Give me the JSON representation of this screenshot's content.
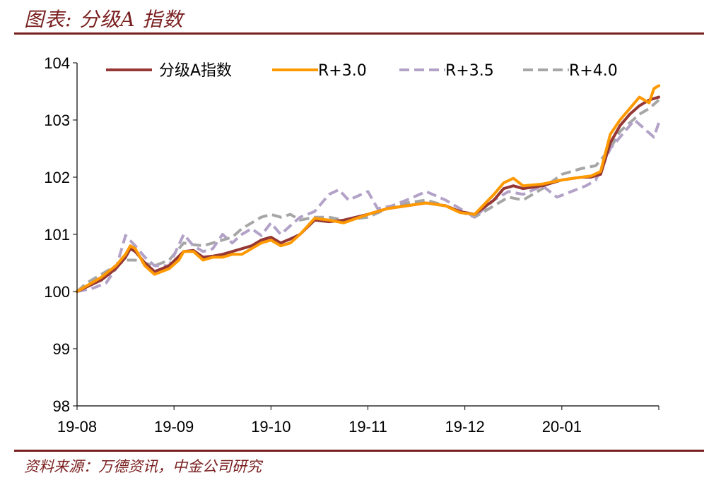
{
  "header": {
    "title": "图表: 分级A 指数"
  },
  "footer": {
    "source": "资料来源：万德资讯，中金公司研究"
  },
  "colors": {
    "accent": "#7a1f1f"
  },
  "chart_data": {
    "type": "line",
    "title": "",
    "xlabel": "",
    "ylabel": "",
    "ylim": [
      98,
      104
    ],
    "yticks": [
      98,
      99,
      100,
      101,
      102,
      103,
      104
    ],
    "xticks": [
      "19-08",
      "19-09",
      "19-10",
      "19-11",
      "19-12",
      "20-01"
    ],
    "xlim_months": [
      0,
      6
    ],
    "grid": false,
    "legend_position": "top",
    "series": [
      {
        "name": "分级A指数",
        "color": "#953735",
        "dash": "solid",
        "points": [
          [
            0,
            100.0
          ],
          [
            0.1,
            100.08
          ],
          [
            0.25,
            100.2
          ],
          [
            0.4,
            100.4
          ],
          [
            0.5,
            100.6
          ],
          [
            0.55,
            100.75
          ],
          [
            0.6,
            100.7
          ],
          [
            0.7,
            100.5
          ],
          [
            0.8,
            100.35
          ],
          [
            0.95,
            100.45
          ],
          [
            1.1,
            100.7
          ],
          [
            1.2,
            100.72
          ],
          [
            1.3,
            100.6
          ],
          [
            1.4,
            100.62
          ],
          [
            1.5,
            100.65
          ],
          [
            1.6,
            100.7
          ],
          [
            1.7,
            100.75
          ],
          [
            1.8,
            100.8
          ],
          [
            1.9,
            100.9
          ],
          [
            2.0,
            100.95
          ],
          [
            2.1,
            100.85
          ],
          [
            2.2,
            100.92
          ],
          [
            2.3,
            101.0
          ],
          [
            2.45,
            101.25
          ],
          [
            2.6,
            101.22
          ],
          [
            2.75,
            101.25
          ],
          [
            3.0,
            101.35
          ],
          [
            3.2,
            101.45
          ],
          [
            3.4,
            101.5
          ],
          [
            3.6,
            101.55
          ],
          [
            3.8,
            101.5
          ],
          [
            3.95,
            101.4
          ],
          [
            4.1,
            101.35
          ],
          [
            4.3,
            101.6
          ],
          [
            4.4,
            101.8
          ],
          [
            4.5,
            101.85
          ],
          [
            4.6,
            101.8
          ],
          [
            4.8,
            101.85
          ],
          [
            5.0,
            101.95
          ],
          [
            5.2,
            102.0
          ],
          [
            5.3,
            102.0
          ],
          [
            5.4,
            102.05
          ],
          [
            5.5,
            102.6
          ],
          [
            5.6,
            102.9
          ],
          [
            5.7,
            103.1
          ],
          [
            5.8,
            103.25
          ],
          [
            5.9,
            103.35
          ],
          [
            6.0,
            103.4
          ]
        ]
      },
      {
        "name": "R+3.0",
        "color": "#ff9900",
        "dash": "solid",
        "points": [
          [
            0,
            100.0
          ],
          [
            0.1,
            100.1
          ],
          [
            0.25,
            100.25
          ],
          [
            0.4,
            100.45
          ],
          [
            0.5,
            100.65
          ],
          [
            0.55,
            100.8
          ],
          [
            0.6,
            100.75
          ],
          [
            0.7,
            100.45
          ],
          [
            0.8,
            100.3
          ],
          [
            0.95,
            100.4
          ],
          [
            1.05,
            100.55
          ],
          [
            1.1,
            100.7
          ],
          [
            1.2,
            100.7
          ],
          [
            1.3,
            100.55
          ],
          [
            1.4,
            100.6
          ],
          [
            1.5,
            100.6
          ],
          [
            1.6,
            100.65
          ],
          [
            1.7,
            100.65
          ],
          [
            1.8,
            100.75
          ],
          [
            1.9,
            100.85
          ],
          [
            2.0,
            100.9
          ],
          [
            2.1,
            100.8
          ],
          [
            2.2,
            100.85
          ],
          [
            2.3,
            101.0
          ],
          [
            2.45,
            101.28
          ],
          [
            2.6,
            101.25
          ],
          [
            2.75,
            101.2
          ],
          [
            3.0,
            101.35
          ],
          [
            3.2,
            101.45
          ],
          [
            3.4,
            101.5
          ],
          [
            3.6,
            101.55
          ],
          [
            3.8,
            101.5
          ],
          [
            3.95,
            101.38
          ],
          [
            4.1,
            101.35
          ],
          [
            4.3,
            101.7
          ],
          [
            4.4,
            101.9
          ],
          [
            4.5,
            101.98
          ],
          [
            4.6,
            101.85
          ],
          [
            4.8,
            101.88
          ],
          [
            5.0,
            101.95
          ],
          [
            5.2,
            102.0
          ],
          [
            5.3,
            102.02
          ],
          [
            5.4,
            102.1
          ],
          [
            5.5,
            102.75
          ],
          [
            5.6,
            103.0
          ],
          [
            5.7,
            103.2
          ],
          [
            5.8,
            103.4
          ],
          [
            5.9,
            103.3
          ],
          [
            5.95,
            103.55
          ],
          [
            6.0,
            103.6
          ]
        ]
      },
      {
        "name": "R+3.5",
        "color": "#b3a2c7",
        "dash": "dashed",
        "points": [
          [
            0,
            100.0
          ],
          [
            0.15,
            100.05
          ],
          [
            0.3,
            100.15
          ],
          [
            0.4,
            100.4
          ],
          [
            0.5,
            100.98
          ],
          [
            0.6,
            100.8
          ],
          [
            0.7,
            100.6
          ],
          [
            0.8,
            100.45
          ],
          [
            0.95,
            100.45
          ],
          [
            1.1,
            101.0
          ],
          [
            1.2,
            100.8
          ],
          [
            1.3,
            100.7
          ],
          [
            1.4,
            100.75
          ],
          [
            1.5,
            101.0
          ],
          [
            1.6,
            100.85
          ],
          [
            1.7,
            101.0
          ],
          [
            1.8,
            101.1
          ],
          [
            1.9,
            100.98
          ],
          [
            2.0,
            101.2
          ],
          [
            2.1,
            101.0
          ],
          [
            2.2,
            101.15
          ],
          [
            2.3,
            101.3
          ],
          [
            2.45,
            101.4
          ],
          [
            2.6,
            101.7
          ],
          [
            2.7,
            101.78
          ],
          [
            2.8,
            101.6
          ],
          [
            3.0,
            101.75
          ],
          [
            3.1,
            101.45
          ],
          [
            3.25,
            101.5
          ],
          [
            3.4,
            101.6
          ],
          [
            3.6,
            101.75
          ],
          [
            3.8,
            101.6
          ],
          [
            3.95,
            101.45
          ],
          [
            4.1,
            101.3
          ],
          [
            4.3,
            101.6
          ],
          [
            4.45,
            101.75
          ],
          [
            4.6,
            101.7
          ],
          [
            4.8,
            101.85
          ],
          [
            4.95,
            101.65
          ],
          [
            5.1,
            101.75
          ],
          [
            5.25,
            101.85
          ],
          [
            5.35,
            101.95
          ],
          [
            5.5,
            102.5
          ],
          [
            5.65,
            102.8
          ],
          [
            5.75,
            103.0
          ],
          [
            5.85,
            102.85
          ],
          [
            5.95,
            102.7
          ],
          [
            6.0,
            102.95
          ]
        ]
      },
      {
        "name": "R+4.0",
        "color": "#a6a6a6",
        "dash": "dashed",
        "points": [
          [
            0,
            100.0
          ],
          [
            0.1,
            100.15
          ],
          [
            0.25,
            100.3
          ],
          [
            0.4,
            100.45
          ],
          [
            0.5,
            100.55
          ],
          [
            0.6,
            100.55
          ],
          [
            0.7,
            100.5
          ],
          [
            0.8,
            100.45
          ],
          [
            0.95,
            100.55
          ],
          [
            1.1,
            100.85
          ],
          [
            1.2,
            100.82
          ],
          [
            1.3,
            100.8
          ],
          [
            1.4,
            100.85
          ],
          [
            1.5,
            100.9
          ],
          [
            1.6,
            100.95
          ],
          [
            1.7,
            101.1
          ],
          [
            1.8,
            101.2
          ],
          [
            1.9,
            101.3
          ],
          [
            2.0,
            101.35
          ],
          [
            2.1,
            101.3
          ],
          [
            2.2,
            101.35
          ],
          [
            2.3,
            101.25
          ],
          [
            2.45,
            101.3
          ],
          [
            2.6,
            101.3
          ],
          [
            2.75,
            101.25
          ],
          [
            3.0,
            101.3
          ],
          [
            3.2,
            101.45
          ],
          [
            3.4,
            101.55
          ],
          [
            3.6,
            101.6
          ],
          [
            3.8,
            101.5
          ],
          [
            3.95,
            101.4
          ],
          [
            4.1,
            101.3
          ],
          [
            4.3,
            101.5
          ],
          [
            4.45,
            101.65
          ],
          [
            4.6,
            101.6
          ],
          [
            4.8,
            101.8
          ],
          [
            5.0,
            102.05
          ],
          [
            5.2,
            102.15
          ],
          [
            5.35,
            102.2
          ],
          [
            5.5,
            102.5
          ],
          [
            5.6,
            102.8
          ],
          [
            5.7,
            102.95
          ],
          [
            5.8,
            103.1
          ],
          [
            5.9,
            103.2
          ],
          [
            6.0,
            103.35
          ]
        ]
      }
    ]
  }
}
